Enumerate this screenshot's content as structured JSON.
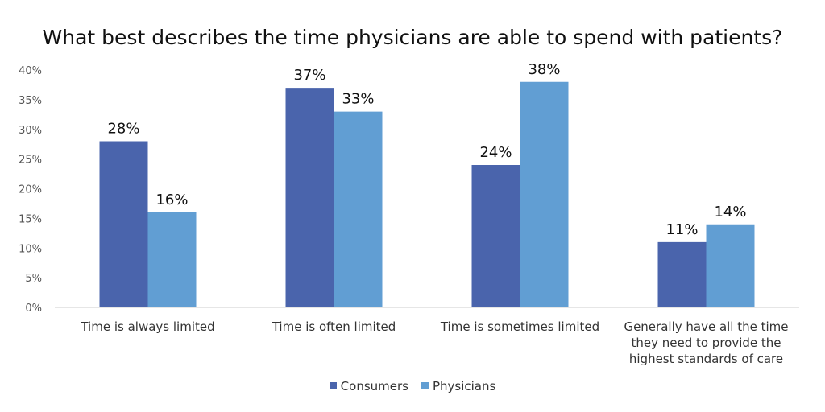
{
  "chart_data": {
    "type": "bar",
    "title": "What best describes the time physicians are able to spend with patients?",
    "categories": [
      [
        "Time is always limited"
      ],
      [
        "Time is often limited"
      ],
      [
        "Time is sometimes limited"
      ],
      [
        "Generally have all the time",
        "they need to provide the",
        "highest standards of care"
      ]
    ],
    "series": [
      {
        "name": "Consumers",
        "values": [
          28,
          37,
          24,
          11
        ],
        "color": "#4a64ac"
      },
      {
        "name": "Physicians",
        "values": [
          16,
          33,
          38,
          14
        ],
        "color": "#619ed3"
      }
    ],
    "ylim": [
      0,
      40
    ],
    "yticks": [
      "0%",
      "5%",
      "10%",
      "15%",
      "20%",
      "25%",
      "30%",
      "35%",
      "40%"
    ],
    "grid": false,
    "legend": "bottom"
  }
}
